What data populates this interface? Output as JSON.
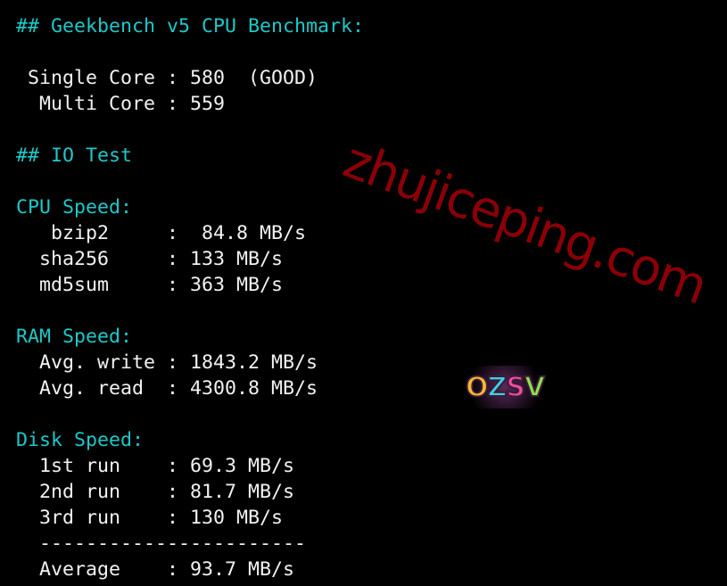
{
  "terminal": {
    "lines": [
      {
        "text": "## Geekbench v5 CPU Benchmark:",
        "color": "cyan"
      },
      {
        "text": "",
        "color": "white"
      },
      {
        "text": " Single Core : 580  (GOOD)",
        "color": "white"
      },
      {
        "text": "  Multi Core : 559",
        "color": "white"
      },
      {
        "text": "",
        "color": "white"
      },
      {
        "text": "## IO Test",
        "color": "cyan"
      },
      {
        "text": "",
        "color": "white"
      },
      {
        "text": "CPU Speed:",
        "color": "cyan"
      },
      {
        "text": "   bzip2     :  84.8 MB/s",
        "color": "white"
      },
      {
        "text": "  sha256     : 133 MB/s",
        "color": "white"
      },
      {
        "text": "  md5sum     : 363 MB/s",
        "color": "white"
      },
      {
        "text": "",
        "color": "white"
      },
      {
        "text": "RAM Speed:",
        "color": "cyan"
      },
      {
        "text": "  Avg. write : 1843.2 MB/s",
        "color": "white"
      },
      {
        "text": "  Avg. read  : 4300.8 MB/s",
        "color": "white"
      },
      {
        "text": "",
        "color": "white"
      },
      {
        "text": "Disk Speed:",
        "color": "cyan"
      },
      {
        "text": "  1st run    : 69.3 MB/s",
        "color": "white"
      },
      {
        "text": "  2nd run    : 81.7 MB/s",
        "color": "white"
      },
      {
        "text": "  3rd run    : 130 MB/s",
        "color": "white"
      },
      {
        "text": "  -----------------------",
        "color": "white"
      },
      {
        "text": "  Average    : 93.7 MB/s",
        "color": "white"
      }
    ]
  },
  "watermark": {
    "text": "zhujiceping.com",
    "color": "#8a0006"
  },
  "logo": {
    "text": "OZSV"
  },
  "colors": {
    "background": "#000000",
    "heading": "#1ec8c8",
    "text": "#f2f2f2"
  }
}
